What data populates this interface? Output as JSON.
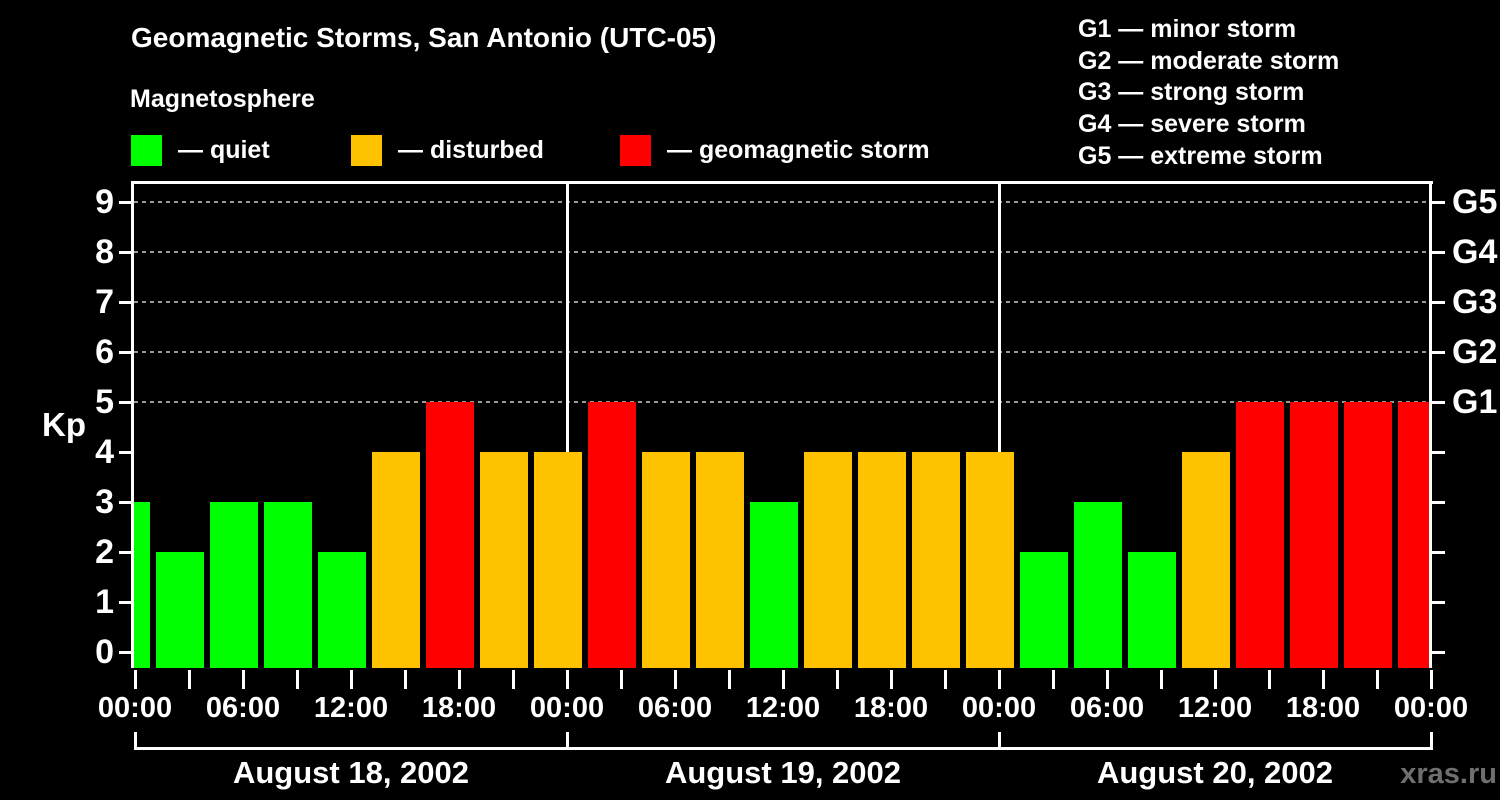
{
  "title": "Geomagnetic Storms, San Antonio (UTC-05)",
  "subtitle": "Magnetosphere",
  "watermark": "xras.ru",
  "kp_axis_label": "Kp",
  "status_colors": {
    "quiet": "#00ff00",
    "disturbed": "#ffc200",
    "storm": "#ff0000"
  },
  "colors": {
    "background": "#000000",
    "axis": "#ffffff",
    "gridline": "#9a9a9a",
    "watermark_text": "#6f6f6f"
  },
  "legend": [
    {
      "label": "— quiet",
      "status": "quiet"
    },
    {
      "label": "— disturbed",
      "status": "disturbed"
    },
    {
      "label": "— geomagnetic storm",
      "status": "storm"
    }
  ],
  "g_scale_legend": [
    "G1 — minor storm",
    "G2 — moderate storm",
    "G3 — strong storm",
    "G4 — severe storm",
    "G5 — extreme storm"
  ],
  "chart_data": {
    "type": "bar",
    "title": "Geomagnetic Storms, San Antonio (UTC-05)",
    "subtitle": "Magnetosphere",
    "ylabel": "Kp",
    "ylim": [
      0,
      9
    ],
    "y_ticks": [
      0,
      1,
      2,
      3,
      4,
      5,
      6,
      7,
      8,
      9
    ],
    "gridlines_at": [
      5,
      6,
      7,
      8,
      9
    ],
    "grid": "dashed horizontal at storm levels only",
    "legend_position": "top-left",
    "right_axis_labels": [
      {
        "label": "G5",
        "kp": 9
      },
      {
        "label": "G4",
        "kp": 8
      },
      {
        "label": "G3",
        "kp": 7
      },
      {
        "label": "G2",
        "kp": 6
      },
      {
        "label": "G1",
        "kp": 5
      }
    ],
    "x_tick_labels": [
      "00:00",
      "06:00",
      "12:00",
      "18:00",
      "00:00",
      "06:00",
      "12:00",
      "18:00",
      "00:00",
      "06:00",
      "12:00",
      "18:00",
      "00:00"
    ],
    "minor_tick_interval_hours": 3,
    "days": [
      "August 18, 2002",
      "August 19, 2002",
      "August 20, 2002"
    ],
    "bars": [
      {
        "kp": 3,
        "status": "quiet"
      },
      {
        "kp": 2,
        "status": "quiet"
      },
      {
        "kp": 3,
        "status": "quiet"
      },
      {
        "kp": 3,
        "status": "quiet"
      },
      {
        "kp": 2,
        "status": "quiet"
      },
      {
        "kp": 4,
        "status": "disturbed"
      },
      {
        "kp": 5,
        "status": "storm"
      },
      {
        "kp": 4,
        "status": "disturbed"
      },
      {
        "kp": 4,
        "status": "disturbed"
      },
      {
        "kp": 5,
        "status": "storm"
      },
      {
        "kp": 4,
        "status": "disturbed"
      },
      {
        "kp": 4,
        "status": "disturbed"
      },
      {
        "kp": 3,
        "status": "quiet"
      },
      {
        "kp": 4,
        "status": "disturbed"
      },
      {
        "kp": 4,
        "status": "disturbed"
      },
      {
        "kp": 4,
        "status": "disturbed"
      },
      {
        "kp": 4,
        "status": "disturbed"
      },
      {
        "kp": 2,
        "status": "quiet"
      },
      {
        "kp": 3,
        "status": "quiet"
      },
      {
        "kp": 2,
        "status": "quiet"
      },
      {
        "kp": 4,
        "status": "disturbed"
      },
      {
        "kp": 5,
        "status": "storm"
      },
      {
        "kp": 5,
        "status": "storm"
      },
      {
        "kp": 5,
        "status": "storm"
      },
      {
        "kp": 5,
        "status": "storm"
      }
    ]
  }
}
